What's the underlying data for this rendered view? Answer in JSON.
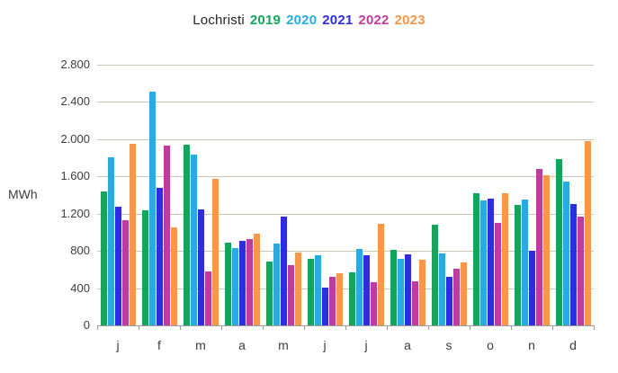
{
  "chart_data": {
    "type": "bar",
    "title": "Lochristi",
    "ylabel": "MWh",
    "xlabel": "",
    "categories": [
      "j",
      "f",
      "m",
      "a",
      "m",
      "j",
      "j",
      "a",
      "s",
      "o",
      "n",
      "d"
    ],
    "series": [
      {
        "name": "2019",
        "color": "#14a45a",
        "values": [
          1440,
          1240,
          1940,
          890,
          690,
          710,
          570,
          810,
          1080,
          1420,
          1290,
          1790
        ]
      },
      {
        "name": "2020",
        "color": "#29abe2",
        "values": [
          1810,
          2510,
          1830,
          830,
          880,
          750,
          820,
          710,
          770,
          1340,
          1350,
          1540
        ]
      },
      {
        "name": "2021",
        "color": "#2e2ede",
        "values": [
          1270,
          1480,
          1250,
          910,
          1170,
          410,
          750,
          760,
          520,
          1360,
          800,
          1300
        ]
      },
      {
        "name": "2022",
        "color": "#be3c9e",
        "values": [
          1130,
          1930,
          580,
          930,
          650,
          520,
          460,
          470,
          610,
          1100,
          1680,
          1170
        ]
      },
      {
        "name": "2023",
        "color": "#f8964a",
        "values": [
          1950,
          1050,
          1570,
          980,
          780,
          560,
          1090,
          700,
          680,
          1420,
          1610,
          1980
        ]
      }
    ],
    "ylim": [
      0,
      2800
    ],
    "ytick_step": 400,
    "yticks": [
      {
        "value": 0,
        "label": "0"
      },
      {
        "value": 400,
        "label": "400"
      },
      {
        "value": 800,
        "label": "800"
      },
      {
        "value": 1200,
        "label": "1.200"
      },
      {
        "value": 1600,
        "label": "1.600"
      },
      {
        "value": 2000,
        "label": "2.000"
      },
      {
        "value": 2400,
        "label": "2.400"
      },
      {
        "value": 2800,
        "label": "2.800"
      }
    ],
    "grid": true,
    "legend_position": "top-inline-with-title",
    "colors": {
      "title_text": "#262626",
      "label_text": "#3d3d3d",
      "gridline": "#cec6b3",
      "axis_line": "#9b9b9b",
      "background": "#ffffff"
    }
  }
}
